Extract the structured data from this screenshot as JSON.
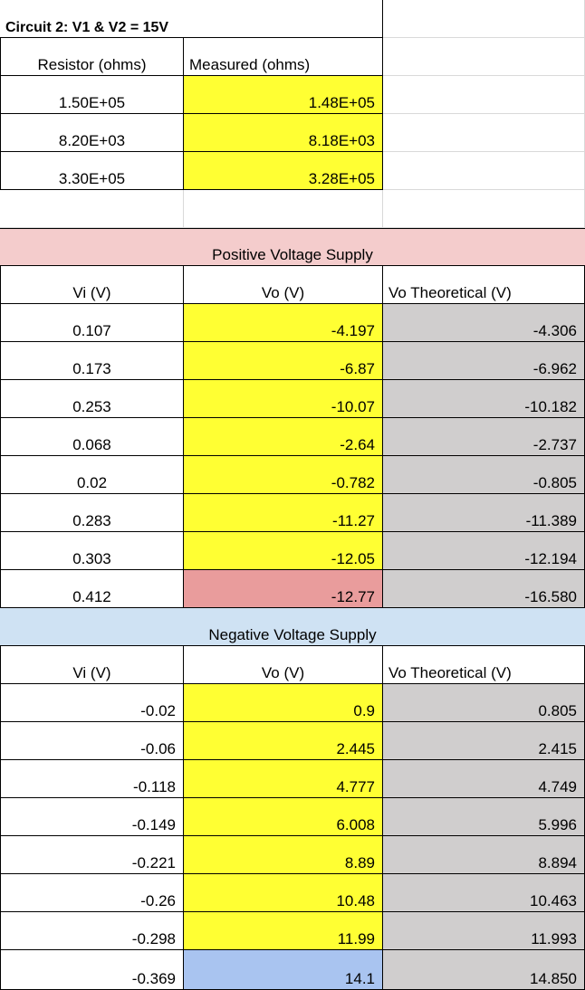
{
  "title": "Circuit 2: V1 & V2 = 15V",
  "resistor_table": {
    "headers": [
      "Resistor (ohms)",
      "Measured (ohms)"
    ],
    "rows": [
      [
        "1.50E+05",
        "1.48E+05"
      ],
      [
        "8.20E+03",
        "8.18E+03"
      ],
      [
        "3.30E+05",
        "3.28E+05"
      ]
    ]
  },
  "positive": {
    "title": "Positive Voltage Supply",
    "headers": [
      "Vi (V)",
      "Vo (V)",
      "Vo Theoretical (V)"
    ],
    "rows": [
      [
        "0.107",
        "-4.197",
        "-4.306"
      ],
      [
        "0.173",
        "-6.87",
        "-6.962"
      ],
      [
        "0.253",
        "-10.07",
        "-10.182"
      ],
      [
        "0.068",
        "-2.64",
        "-2.737"
      ],
      [
        "0.02",
        "-0.782",
        "-0.805"
      ],
      [
        "0.283",
        "-11.27",
        "-11.389"
      ],
      [
        "0.303",
        "-12.05",
        "-12.194"
      ],
      [
        "0.412",
        "-12.77",
        "-16.580"
      ]
    ]
  },
  "negative": {
    "title": "Negative Voltage Supply",
    "headers": [
      "Vi (V)",
      "Vo (V)",
      "Vo Theoretical (V)"
    ],
    "rows": [
      [
        "-0.02",
        "0.9",
        "0.805"
      ],
      [
        "-0.06",
        "2.445",
        "2.415"
      ],
      [
        "-0.118",
        "4.777",
        "4.749"
      ],
      [
        "-0.149",
        "6.008",
        "5.996"
      ],
      [
        "-0.221",
        "8.89",
        "8.894"
      ],
      [
        "-0.26",
        "10.48",
        "10.463"
      ],
      [
        "-0.298",
        "11.99",
        "11.993"
      ],
      [
        "-0.369",
        "14.1",
        "14.850"
      ]
    ]
  },
  "colors": {
    "measured": "#ffff33",
    "theoretical": "#d0cece",
    "positive_header": "#f4cccc",
    "negative_header": "#cfe2f3",
    "saturated_positive": "#e99c9c",
    "saturated_negative": "#a9c4f0"
  }
}
